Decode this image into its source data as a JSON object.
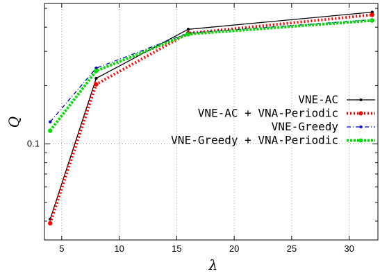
{
  "chart_data": {
    "type": "line",
    "title": "",
    "xlabel": "λ",
    "ylabel": "Q",
    "xlim": [
      3.5,
      32.5
    ],
    "ylim": [
      0.032,
      0.53
    ],
    "yscale": "log",
    "grid": true,
    "legend_position": "right",
    "x_ticks": [
      5,
      10,
      15,
      20,
      25,
      30
    ],
    "x_tick_labels": [
      "5",
      "10",
      "15",
      "20",
      "25",
      "30"
    ],
    "y_ticks": [
      0.1
    ],
    "y_tick_labels": [
      "0.1"
    ],
    "x": [
      4,
      8,
      16,
      32
    ],
    "series": [
      {
        "name": "VNE-AC",
        "values": [
          0.041,
          0.218,
          0.39,
          0.478
        ],
        "color": "#000000",
        "dash": "",
        "width": 1.3,
        "marker": "dot"
      },
      {
        "name": "VNE-AC + VNA-Periodic",
        "values": [
          0.039,
          0.203,
          0.372,
          0.463
        ],
        "color": "#ff0000",
        "dash": "2 3",
        "width": 4,
        "marker": "dot"
      },
      {
        "name": "VNE-Greedy",
        "values": [
          0.13,
          0.246,
          0.373,
          0.437
        ],
        "color": "#0000cc",
        "dash": "6 3 1 3",
        "width": 1.3,
        "marker": "dot"
      },
      {
        "name": "VNE-Greedy + VNA-Periodic",
        "values": [
          0.117,
          0.238,
          0.368,
          0.433
        ],
        "color": "#00dd00",
        "dash": "3 2",
        "width": 4,
        "marker": "dot"
      }
    ]
  }
}
